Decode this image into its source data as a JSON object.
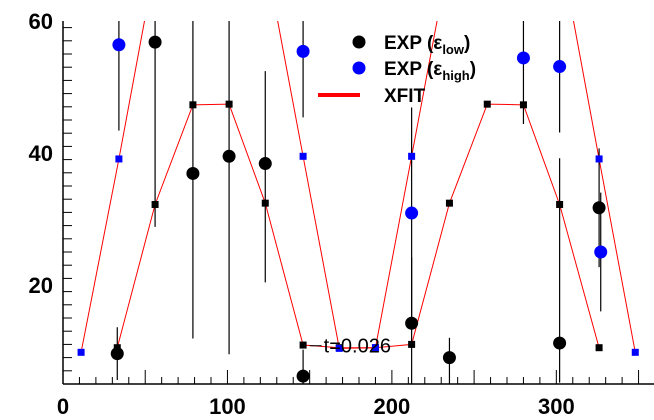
{
  "chart_data": {
    "type": "scatter",
    "xlim": [
      0,
      360
    ],
    "ylim": [
      5,
      60
    ],
    "x_ticks": [
      0,
      100,
      200,
      300
    ],
    "y_ticks": [
      20,
      40,
      60
    ],
    "grid": false,
    "legend_position": "top-right",
    "legend": [
      {
        "key": "exp_low",
        "base": "EXP (ε",
        "sub": "low",
        "close": ")"
      },
      {
        "key": "exp_high",
        "base": "EXP (ε",
        "sub": "high",
        "close": ")"
      },
      {
        "key": "xfit",
        "base": "XFIT",
        "sub": "",
        "close": ""
      }
    ],
    "annotation": "t=0.026",
    "annotation_at": [
      150,
      10.8
    ],
    "series": [
      {
        "key": "exp_low",
        "marker": "circle",
        "color": "#000000",
        "points": [
          {
            "x": 33,
            "y": 9.6,
            "err_lo": 4,
            "err_hi": 4
          },
          {
            "x": 56,
            "y": 56.8,
            "err_lo": 28,
            "err_hi": 20
          },
          {
            "x": 79,
            "y": 36.9,
            "err_lo": 25,
            "err_hi": 25
          },
          {
            "x": 101,
            "y": 39.5,
            "err_lo": 30,
            "err_hi": 25
          },
          {
            "x": 123,
            "y": 38.4,
            "err_lo": 18,
            "err_hi": 14
          },
          {
            "x": 146,
            "y": 6.2,
            "err_lo": 4,
            "err_hi": 4
          },
          {
            "x": 212,
            "y": 14.2,
            "err_lo": 10,
            "err_hi": 10
          },
          {
            "x": 235,
            "y": 9.0,
            "err_lo": 6,
            "err_hi": 3
          },
          {
            "x": 302,
            "y": 11.2,
            "err_lo": 6,
            "err_hi": 28
          },
          {
            "x": 326,
            "y": 31.7,
            "err_lo": 9,
            "err_hi": 9
          }
        ]
      },
      {
        "key": "exp_high",
        "marker": "circle",
        "color": "#0000ff",
        "points": [
          {
            "x": 34,
            "y": 56.4,
            "err_lo": 13,
            "err_hi": 6
          },
          {
            "x": 146,
            "y": 55.4,
            "err_lo": 10,
            "err_hi": 10
          },
          {
            "x": 212,
            "y": 30.9,
            "err_lo": 16,
            "err_hi": 16
          },
          {
            "x": 280,
            "y": 54.4,
            "err_lo": 10,
            "err_hi": 10
          },
          {
            "x": 302,
            "y": 53.1,
            "err_lo": 10,
            "err_hi": 10
          },
          {
            "x": 327,
            "y": 25.0,
            "err_lo": 9,
            "err_hi": 9
          }
        ]
      },
      {
        "key": "xfit_low",
        "marker": "square",
        "color": "#000000",
        "line_color": "#ff0000",
        "points": [
          {
            "x": 33,
            "y": 10.5
          },
          {
            "x": 56,
            "y": 32.2
          },
          {
            "x": 79,
            "y": 47.3
          },
          {
            "x": 101,
            "y": 47.4
          },
          {
            "x": 123,
            "y": 32.4
          },
          {
            "x": 146,
            "y": 10.9
          },
          {
            "x": 168,
            "y": 10.5
          },
          {
            "x": 190,
            "y": 10.5
          },
          {
            "x": 212,
            "y": 11.0
          },
          {
            "x": 235,
            "y": 32.4
          },
          {
            "x": 258,
            "y": 47.4
          },
          {
            "x": 280,
            "y": 47.3
          },
          {
            "x": 302,
            "y": 32.2
          },
          {
            "x": 326,
            "y": 10.5
          }
        ]
      },
      {
        "key": "xfit_high",
        "marker": "square",
        "color": "#0000ff",
        "line_color": "#ff0000",
        "points": [
          {
            "x": 11,
            "y": 9.8
          },
          {
            "x": 34,
            "y": 39.1
          },
          {
            "x": 146,
            "y": 39.5
          },
          {
            "x": 168,
            "y": 10.4
          },
          {
            "x": 190,
            "y": 10.5
          },
          {
            "x": 212,
            "y": 39.5
          },
          {
            "x": 326,
            "y": 39.1
          },
          {
            "x": 348,
            "y": 9.8
          }
        ],
        "line_points": [
          {
            "x": 11,
            "y": 9.8
          },
          {
            "x": 34,
            "y": 39.1
          },
          {
            "x": 57,
            "y": 70
          },
          {
            "x": 123,
            "y": 70
          },
          {
            "x": 146,
            "y": 39.5
          },
          {
            "x": 168,
            "y": 10.4
          },
          {
            "x": 190,
            "y": 10.5
          },
          {
            "x": 212,
            "y": 39.5
          },
          {
            "x": 235,
            "y": 70
          },
          {
            "x": 303,
            "y": 70
          },
          {
            "x": 326,
            "y": 39.1
          },
          {
            "x": 348,
            "y": 9.8
          }
        ]
      }
    ]
  }
}
